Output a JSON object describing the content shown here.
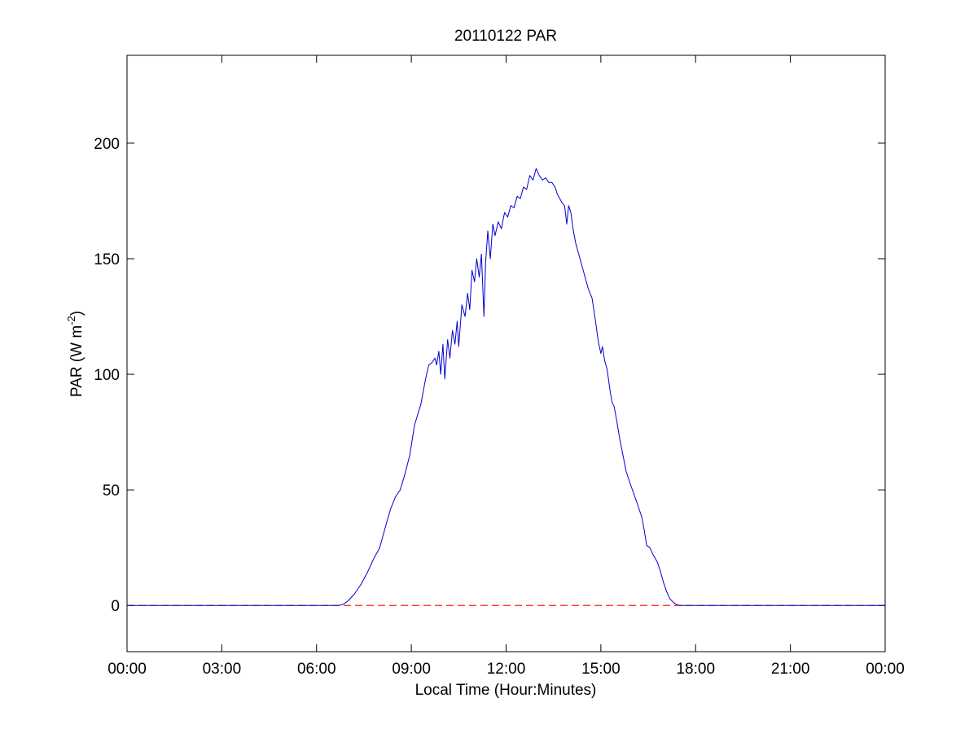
{
  "chart_data": {
    "type": "line",
    "title": "20110122 PAR",
    "xlabel": "Local Time (Hour:Minutes)",
    "ylabel_main": "PAR (W m",
    "ylabel_sup": "-2",
    "ylabel_end": ")",
    "xlim": [
      0,
      24
    ],
    "ylim": [
      -20,
      238
    ],
    "x_ticks": [
      0,
      3,
      6,
      9,
      12,
      15,
      18,
      21,
      24
    ],
    "x_tick_labels": [
      "00:00",
      "03:00",
      "06:00",
      "09:00",
      "12:00",
      "15:00",
      "18:00",
      "21:00",
      "00:00"
    ],
    "y_ticks": [
      0,
      50,
      100,
      150,
      200
    ],
    "y_tick_labels": [
      "0",
      "50",
      "100",
      "150",
      "200"
    ],
    "grid": false,
    "colors": {
      "series": "#0000cc",
      "zero_line": "#ff0000"
    },
    "series": [
      {
        "values": [
          [
            0.0,
            0
          ],
          [
            6.7,
            0
          ],
          [
            6.8,
            0.3
          ],
          [
            6.9,
            1
          ],
          [
            7.0,
            2
          ],
          [
            7.2,
            5
          ],
          [
            7.4,
            9
          ],
          [
            7.6,
            14
          ],
          [
            7.8,
            20
          ],
          [
            8.0,
            25
          ],
          [
            8.2,
            35
          ],
          [
            8.35,
            42
          ],
          [
            8.5,
            47
          ],
          [
            8.65,
            50
          ],
          [
            8.8,
            57
          ],
          [
            8.95,
            65
          ],
          [
            9.1,
            78
          ],
          [
            9.3,
            87
          ],
          [
            9.45,
            98
          ],
          [
            9.55,
            104
          ],
          [
            9.65,
            105
          ],
          [
            9.75,
            107
          ],
          [
            9.8,
            104
          ],
          [
            9.87,
            110
          ],
          [
            9.93,
            100
          ],
          [
            10.0,
            113
          ],
          [
            10.06,
            98
          ],
          [
            10.15,
            115
          ],
          [
            10.22,
            107
          ],
          [
            10.3,
            119
          ],
          [
            10.38,
            113
          ],
          [
            10.45,
            123
          ],
          [
            10.5,
            112
          ],
          [
            10.6,
            130
          ],
          [
            10.7,
            125
          ],
          [
            10.78,
            135
          ],
          [
            10.85,
            128
          ],
          [
            10.92,
            145
          ],
          [
            11.0,
            140
          ],
          [
            11.07,
            150
          ],
          [
            11.15,
            142
          ],
          [
            11.22,
            152
          ],
          [
            11.3,
            125
          ],
          [
            11.35,
            148
          ],
          [
            11.42,
            162
          ],
          [
            11.5,
            150
          ],
          [
            11.58,
            165
          ],
          [
            11.65,
            160
          ],
          [
            11.75,
            166
          ],
          [
            11.85,
            163
          ],
          [
            11.95,
            170
          ],
          [
            12.05,
            168
          ],
          [
            12.15,
            173
          ],
          [
            12.25,
            172
          ],
          [
            12.35,
            177
          ],
          [
            12.45,
            176
          ],
          [
            12.55,
            181
          ],
          [
            12.65,
            180
          ],
          [
            12.75,
            186
          ],
          [
            12.85,
            184
          ],
          [
            12.95,
            189
          ],
          [
            13.05,
            186
          ],
          [
            13.15,
            184
          ],
          [
            13.25,
            185
          ],
          [
            13.35,
            183
          ],
          [
            13.45,
            183
          ],
          [
            13.55,
            181
          ],
          [
            13.62,
            178
          ],
          [
            13.7,
            176
          ],
          [
            13.78,
            174
          ],
          [
            13.85,
            173
          ],
          [
            13.92,
            165
          ],
          [
            13.98,
            173
          ],
          [
            14.05,
            170
          ],
          [
            14.12,
            163
          ],
          [
            14.2,
            157
          ],
          [
            14.28,
            153
          ],
          [
            14.38,
            148
          ],
          [
            14.48,
            143
          ],
          [
            14.6,
            137
          ],
          [
            14.72,
            133
          ],
          [
            14.82,
            124
          ],
          [
            14.92,
            114
          ],
          [
            15.0,
            109
          ],
          [
            15.05,
            112
          ],
          [
            15.12,
            106
          ],
          [
            15.2,
            102
          ],
          [
            15.28,
            94
          ],
          [
            15.35,
            88
          ],
          [
            15.42,
            86
          ],
          [
            15.5,
            80
          ],
          [
            15.6,
            72
          ],
          [
            15.7,
            65
          ],
          [
            15.8,
            58
          ],
          [
            15.92,
            53
          ],
          [
            16.05,
            48
          ],
          [
            16.18,
            43
          ],
          [
            16.3,
            38
          ],
          [
            16.38,
            32
          ],
          [
            16.45,
            26
          ],
          [
            16.55,
            25
          ],
          [
            16.65,
            22
          ],
          [
            16.78,
            19
          ],
          [
            16.88,
            15
          ],
          [
            16.98,
            10
          ],
          [
            17.08,
            6
          ],
          [
            17.18,
            3
          ],
          [
            17.28,
            1.5
          ],
          [
            17.38,
            0.5
          ],
          [
            17.5,
            0
          ],
          [
            24.0,
            0
          ]
        ]
      }
    ],
    "reference_line": {
      "y": 0,
      "style": "dashed"
    }
  }
}
